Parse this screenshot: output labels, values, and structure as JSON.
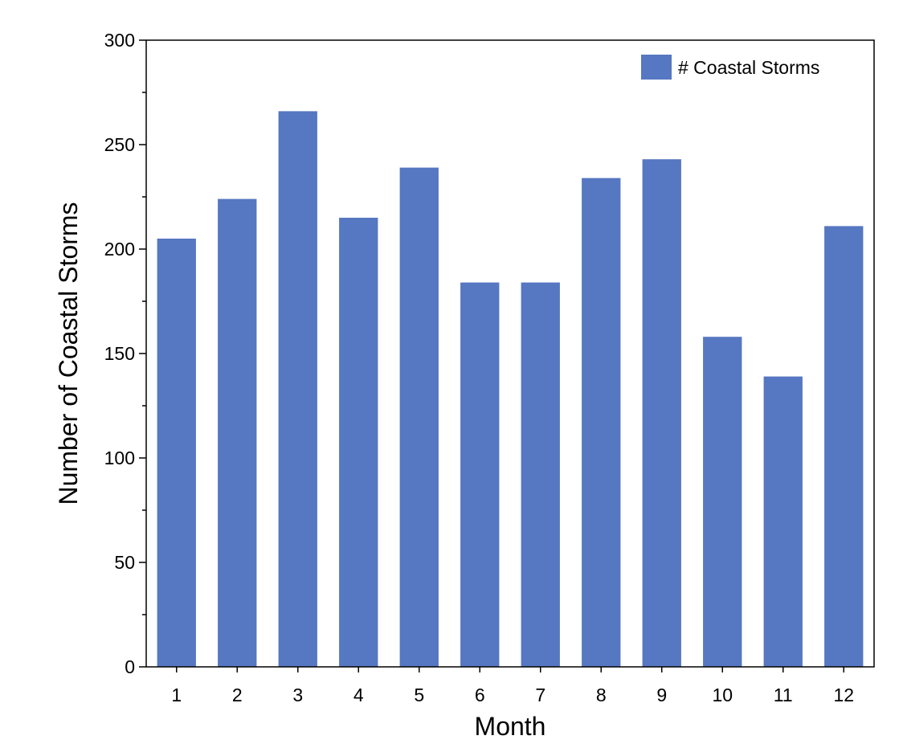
{
  "chart_data": {
    "type": "bar",
    "categories": [
      "1",
      "2",
      "3",
      "4",
      "5",
      "6",
      "7",
      "8",
      "9",
      "10",
      "11",
      "12"
    ],
    "series": [
      {
        "name": "# Coastal Storms",
        "values": [
          205,
          224,
          266,
          215,
          239,
          184,
          184,
          234,
          243,
          158,
          139,
          211
        ],
        "color": "#5677c1"
      }
    ],
    "title": "",
    "xlabel": "Month",
    "ylabel": "Number of Coastal Storms",
    "ylim": [
      0,
      300
    ],
    "yticks": [
      0,
      50,
      100,
      150,
      200,
      250,
      300
    ],
    "y_minor_step": 25,
    "grid": false,
    "legend_position": "top-right"
  }
}
